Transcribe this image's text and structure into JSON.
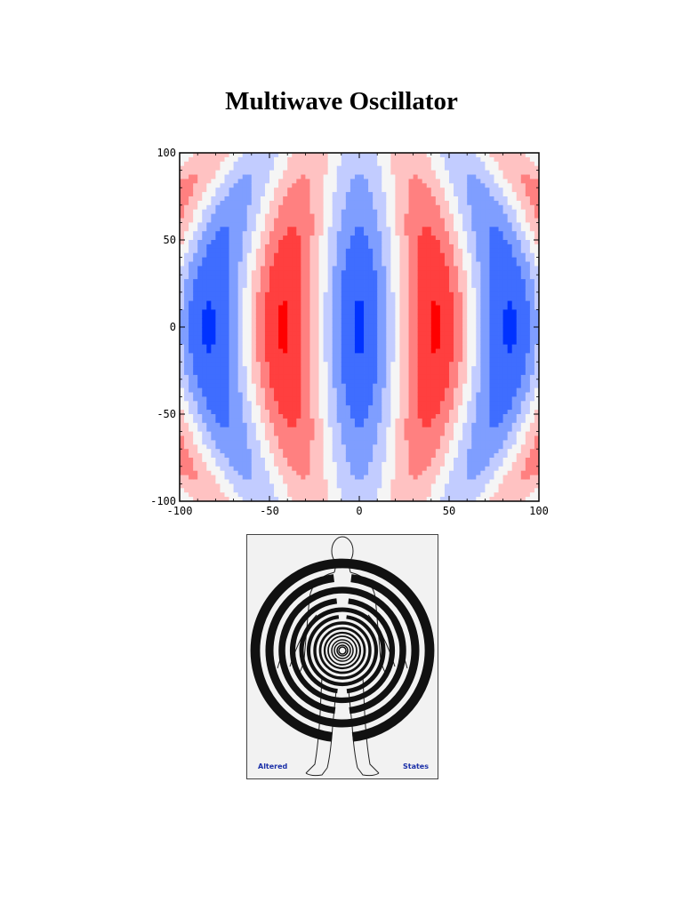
{
  "page": {
    "title": "Multiwave Oscillator"
  },
  "chart_data": {
    "type": "heatmap",
    "title": "",
    "xlabel": "",
    "ylabel": "",
    "xlim": [
      -100,
      100
    ],
    "ylim": [
      -100,
      100
    ],
    "x_ticks": [
      "-100",
      "-50",
      "0",
      "50",
      "100"
    ],
    "y_ticks": [
      "100",
      "50",
      "0",
      "-50",
      "-100"
    ],
    "grid": false,
    "legend": "none",
    "colormap": {
      "negative": "#0032ff",
      "neutral": "#f5f5f5",
      "positive": "#ff0000"
    },
    "contour_levels": 9,
    "description_of_field": "symmetric standing-wave pattern: negative core at center, positive lobes near x=±40, negative arcs near x=±75, positive near x=±100"
  },
  "figure": {
    "left_label": "Altered",
    "right_label": "States",
    "ring_color": "#111111",
    "label_color": "#1a2fa8"
  }
}
